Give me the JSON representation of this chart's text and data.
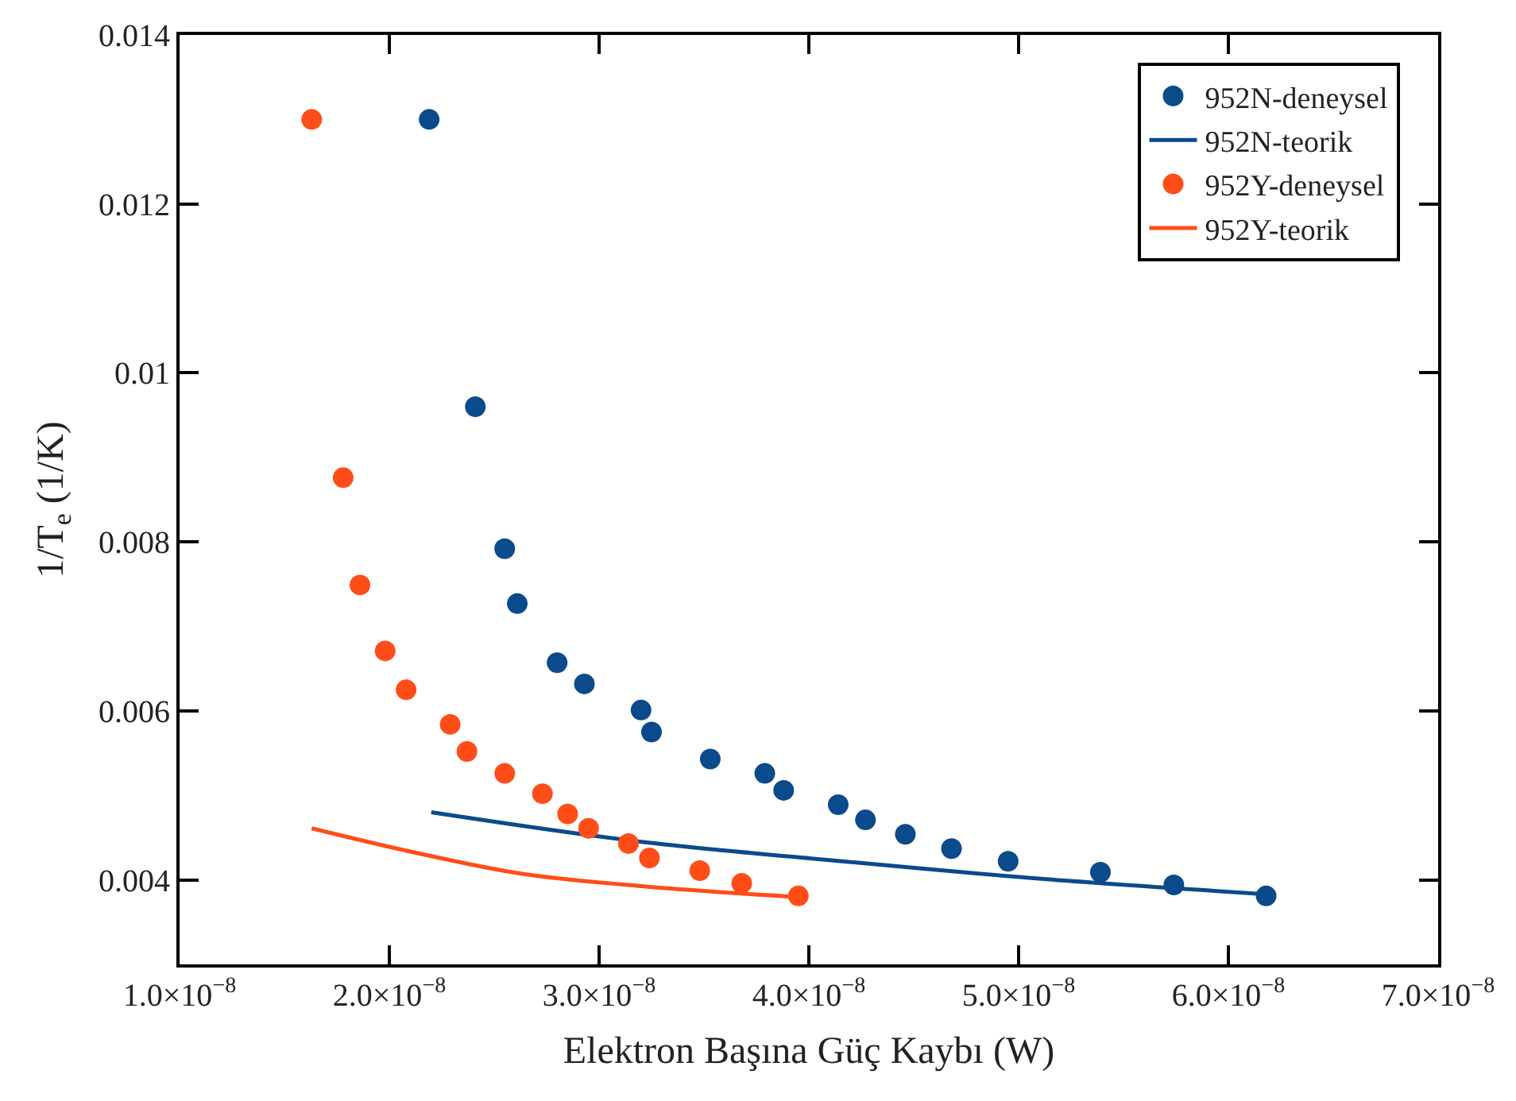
{
  "chart_data": {
    "type": "scatter",
    "xlabel": "Elektron Başına Güç Kaybı (W)",
    "ylabel": "1/T$_{e}$ (1/K)",
    "xlim": [
      1e-08,
      7e-08
    ],
    "ylim": [
      0.003,
      0.014
    ],
    "xticks": [
      {
        "value": 1e-08,
        "label": "1.0×10$^{−8}$"
      },
      {
        "value": 2e-08,
        "label": "2.0×10$^{−8}$"
      },
      {
        "value": 3e-08,
        "label": "3.0×10$^{−8}$"
      },
      {
        "value": 4e-08,
        "label": "4.0×10$^{−8}$"
      },
      {
        "value": 5e-08,
        "label": "5.0×10$^{−8}$"
      },
      {
        "value": 6e-08,
        "label": "6.0×10$^{−8}$"
      },
      {
        "value": 7e-08,
        "label": "7.0×10$^{−8}$"
      }
    ],
    "yticks": [
      0.004,
      0.006,
      0.008,
      0.01,
      0.012,
      0.014
    ],
    "legend": "top right",
    "series": [
      {
        "name": "952N-deneysel",
        "marker": "circle",
        "color": "#0b4a8b",
        "x": [
          2.19e-08,
          2.41e-08,
          2.55e-08,
          2.61e-08,
          2.8e-08,
          2.93e-08,
          3.2e-08,
          3.25e-08,
          3.53e-08,
          3.79e-08,
          3.88e-08,
          4.14e-08,
          4.27e-08,
          4.46e-08,
          4.68e-08,
          4.95e-08,
          5.39e-08,
          5.74e-08,
          6.18e-08
        ],
        "values": [
          0.013,
          0.0096,
          0.00792,
          0.00727,
          0.00657,
          0.00632,
          0.00601,
          0.00575,
          0.00543,
          0.00526,
          0.00506,
          0.00489,
          0.00471,
          0.00454,
          0.00437,
          0.00422,
          0.00409,
          0.00394,
          0.00381
        ]
      },
      {
        "name": "952N-teorik",
        "type": "line",
        "marker": "none",
        "color": "#0b4a8b",
        "x": [
          2.2e-08,
          3.17e-08,
          4.16e-08,
          5.07e-08,
          6.18e-08
        ],
        "values": [
          0.0048,
          0.00446,
          0.00422,
          0.00402,
          0.00383
        ]
      },
      {
        "name": "952Y-deneysel",
        "marker": "circle",
        "color": "#ff4d1a",
        "x": [
          1.63e-08,
          1.78e-08,
          1.86e-08,
          1.98e-08,
          2.08e-08,
          2.29e-08,
          2.37e-08,
          2.55e-08,
          2.73e-08,
          2.85e-08,
          2.95e-08,
          3.14e-08,
          3.24e-08,
          3.48e-08,
          3.68e-08,
          3.95e-08
        ],
        "values": [
          0.013,
          0.00876,
          0.00749,
          0.00671,
          0.00625,
          0.00584,
          0.00552,
          0.00526,
          0.00502,
          0.00478,
          0.00461,
          0.00443,
          0.00426,
          0.00411,
          0.00396,
          0.00381
        ]
      },
      {
        "name": "952Y-teorik",
        "type": "line",
        "marker": "none",
        "color": "#ff4d1a",
        "x": [
          1.63e-08,
          2.11e-08,
          2.64e-08,
          3.33e-08,
          3.93e-08
        ],
        "values": [
          0.00461,
          0.00433,
          0.00407,
          0.0039,
          0.0038
        ]
      }
    ]
  }
}
